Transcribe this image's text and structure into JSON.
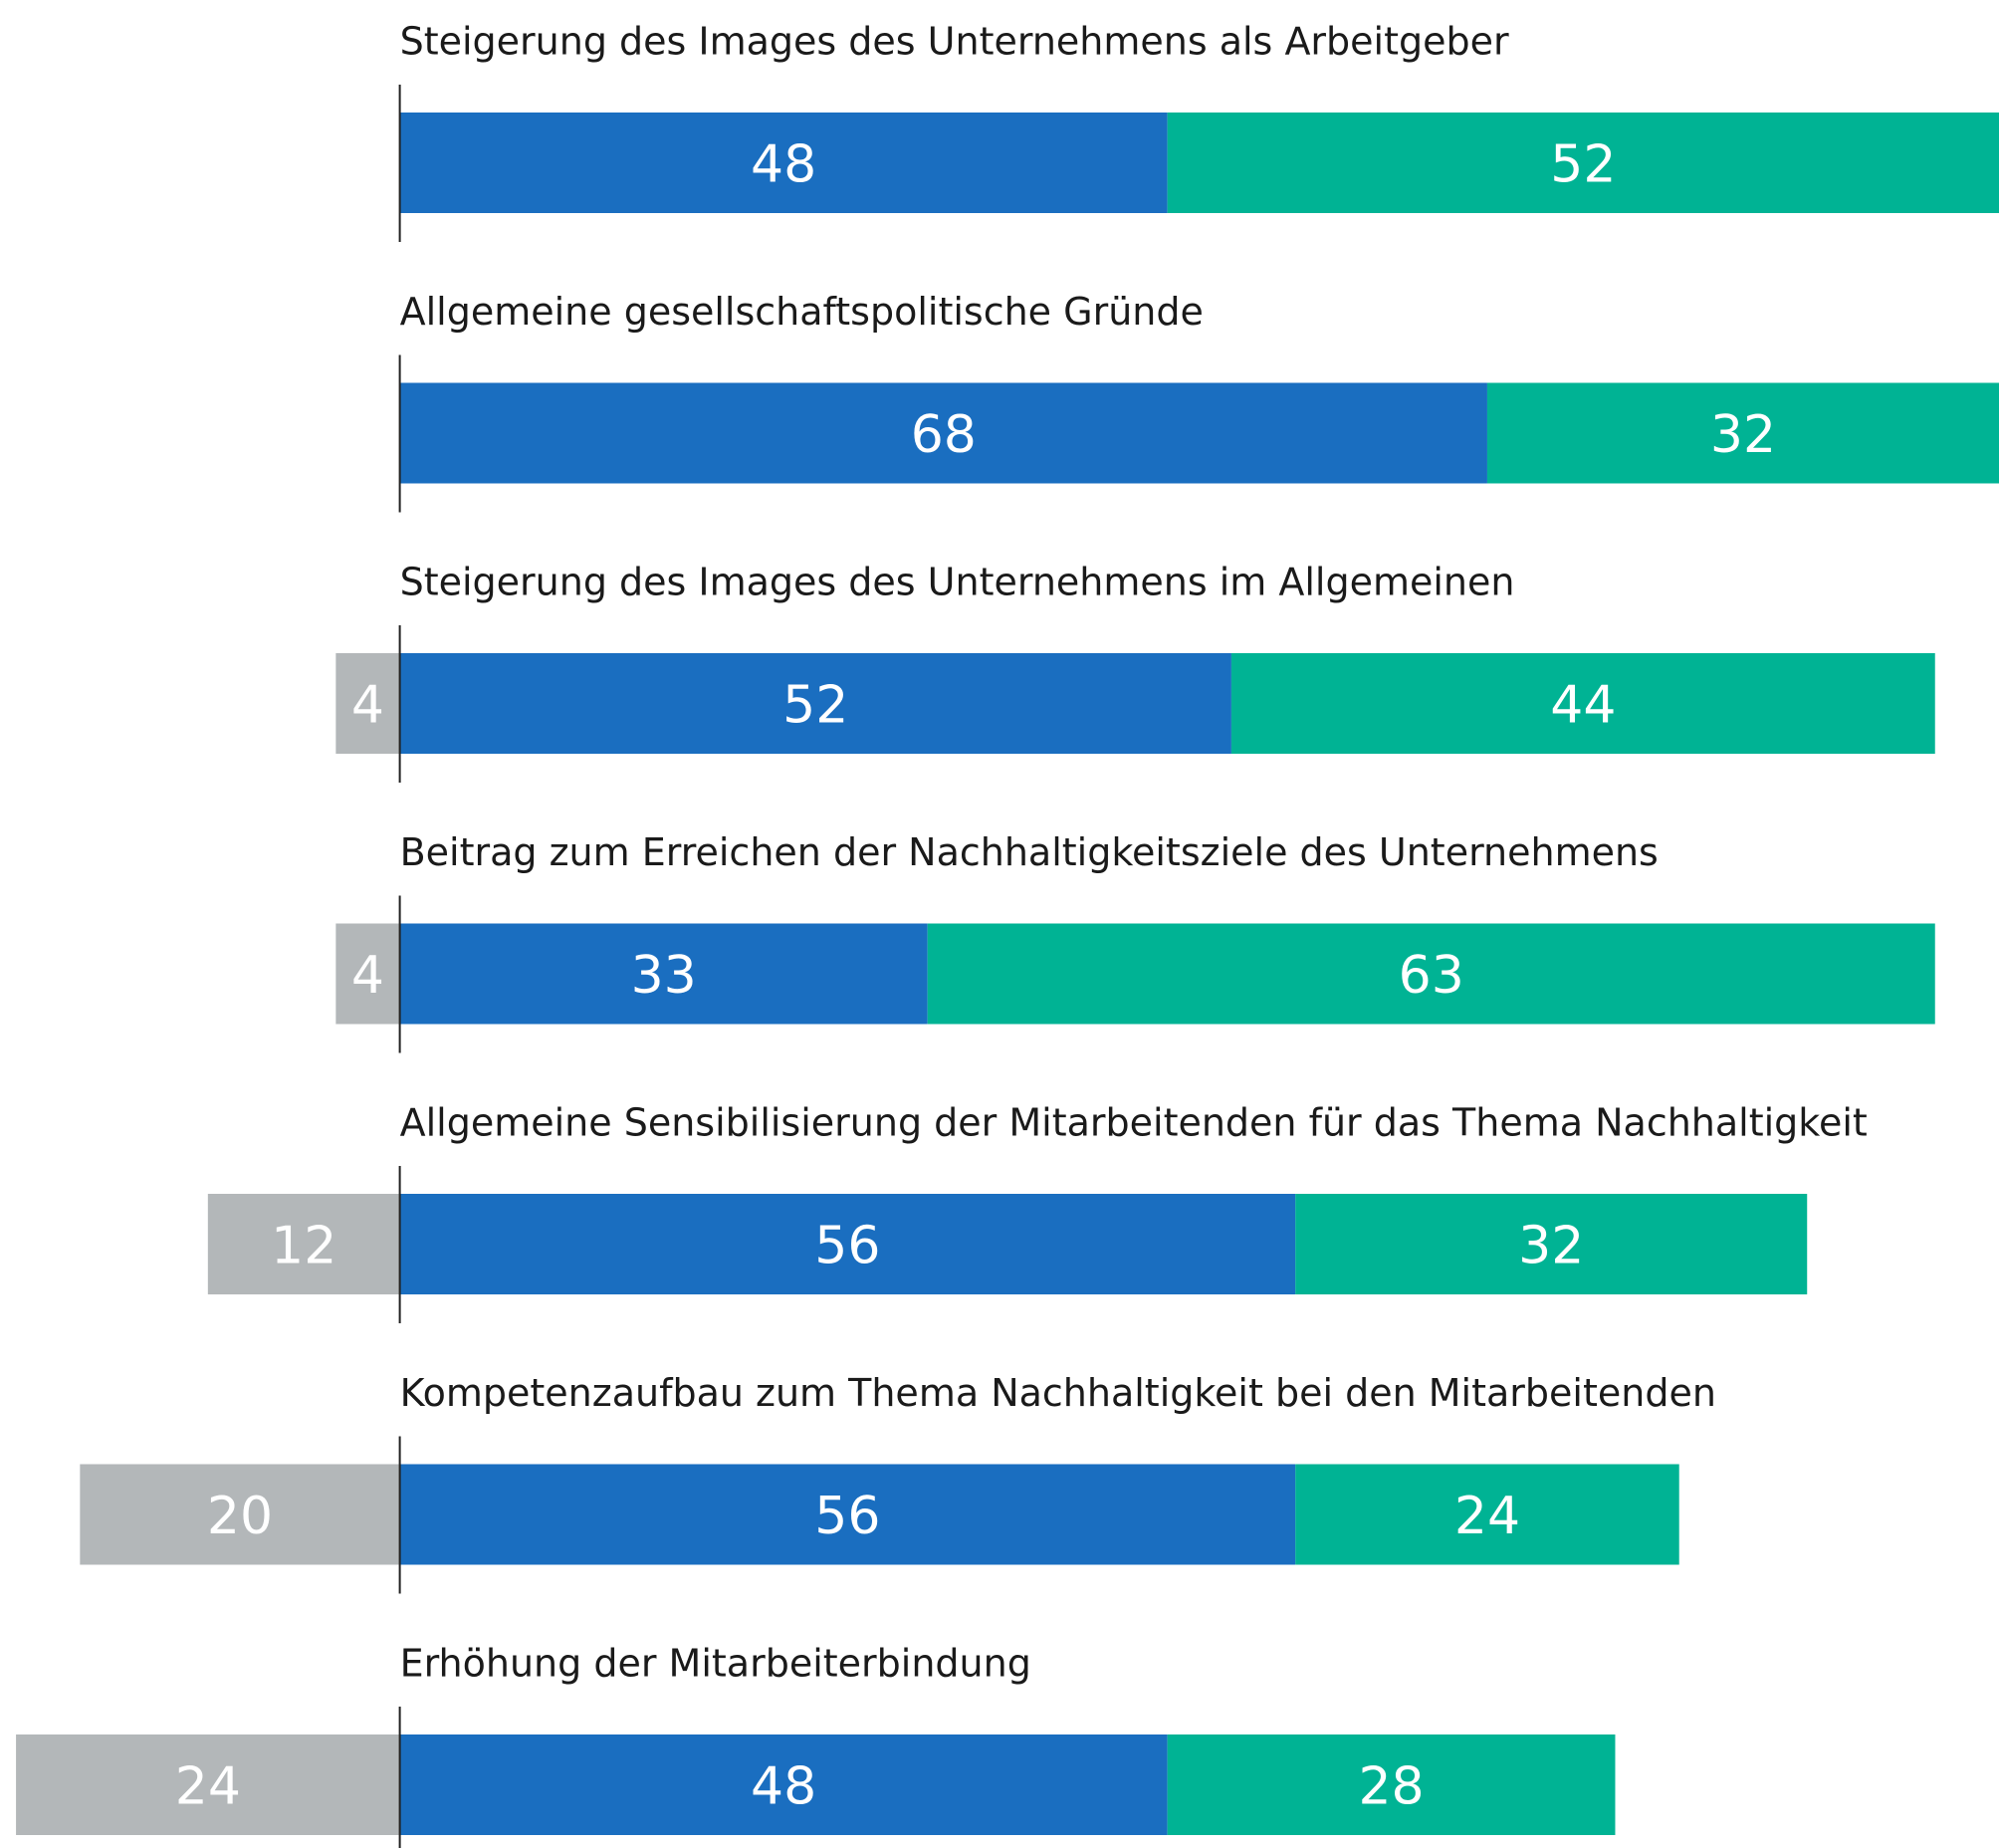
{
  "chart_data": {
    "type": "bar",
    "orientation": "horizontal",
    "stacked": true,
    "categories": [
      "Steigerung des Images des Unternehmens als Arbeitgeber",
      "Allgemeine gesellschaftspolitische Gründe",
      "Steigerung des Images des Unternehmens im Allgemeinen",
      "Beitrag zum Erreichen der Nachhaltigkeitsziele des Unternehmens",
      "Allgemeine Sensibilisierung der Mitarbeitenden für das Thema Nachhaltigkeit",
      "Kompetenzaufbau zum Thema Nachhaltigkeit bei den Mitarbeitenden",
      "Erhöhung der Mitarbeiterbindung"
    ],
    "series": [
      {
        "color": "#b3b7b9",
        "values": [
          null,
          null,
          4,
          4,
          12,
          20,
          24
        ]
      },
      {
        "color": "#1a6ec0",
        "values": [
          48,
          68,
          52,
          33,
          56,
          56,
          48
        ]
      },
      {
        "color": "#00b394",
        "values": [
          52,
          32,
          44,
          63,
          32,
          24,
          28
        ]
      }
    ],
    "xlim": [
      -25,
      100
    ]
  }
}
